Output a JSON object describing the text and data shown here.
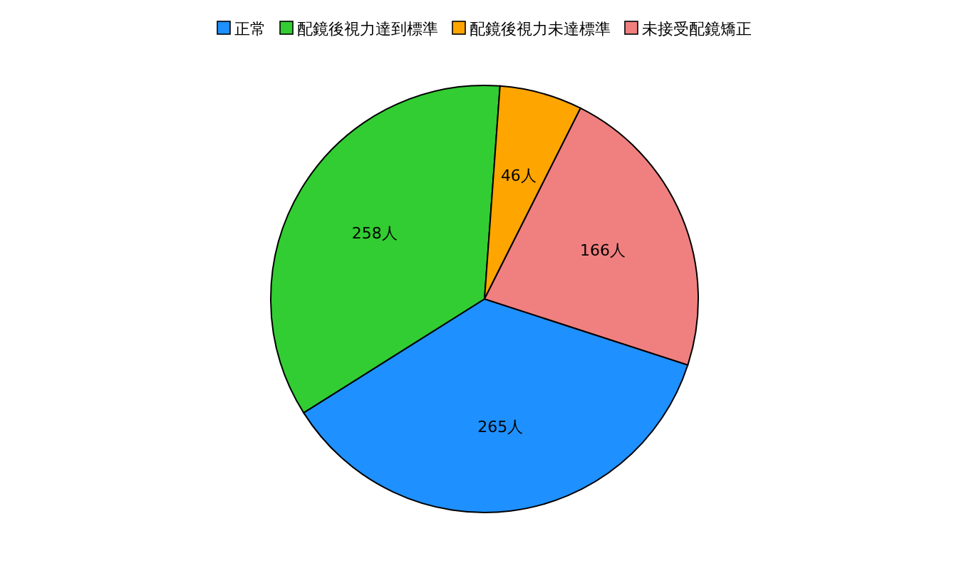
{
  "chart_data": {
    "type": "pie",
    "categories": [
      "正常",
      "配鏡後視力達到標準",
      "配鏡後視力未達標準",
      "未接受配鏡矯正"
    ],
    "values": [
      265,
      258,
      46,
      166
    ],
    "colors": [
      "#1e90ff",
      "#32cd32",
      "#ffa500",
      "#f08080"
    ],
    "value_labels": [
      "265人",
      "258人",
      "46人",
      "166人"
    ],
    "legend": "top"
  }
}
